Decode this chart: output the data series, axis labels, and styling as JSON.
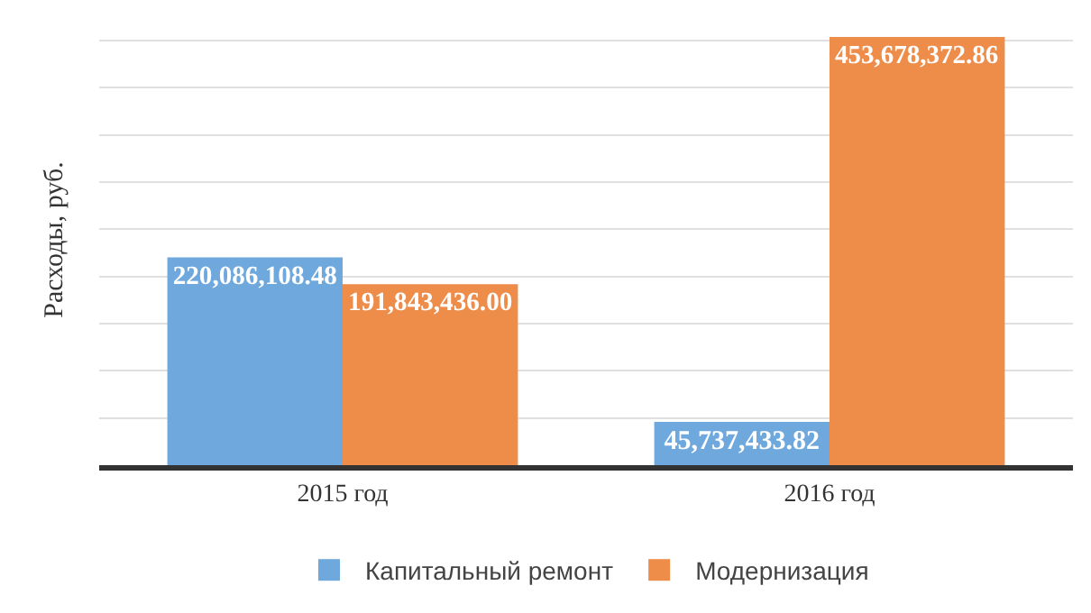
{
  "chart_data": {
    "type": "bar",
    "ylabel": "Расходы, руб.",
    "categories": [
      "2015 год",
      "2016 год"
    ],
    "series": [
      {
        "name": "Капитальный ремонт",
        "color": "#6fa8dc",
        "values": [
          220086108.48,
          45737433.82
        ],
        "value_labels": [
          "220,086,108.48",
          "45,737,433.82"
        ]
      },
      {
        "name": "Модернизация",
        "color": "#ee8c4a",
        "values": [
          191843436.0,
          453678372.86
        ],
        "value_labels": [
          "191,843,436.00",
          "453,678,372.86"
        ]
      }
    ],
    "grid": "y",
    "legend": "bottom"
  }
}
